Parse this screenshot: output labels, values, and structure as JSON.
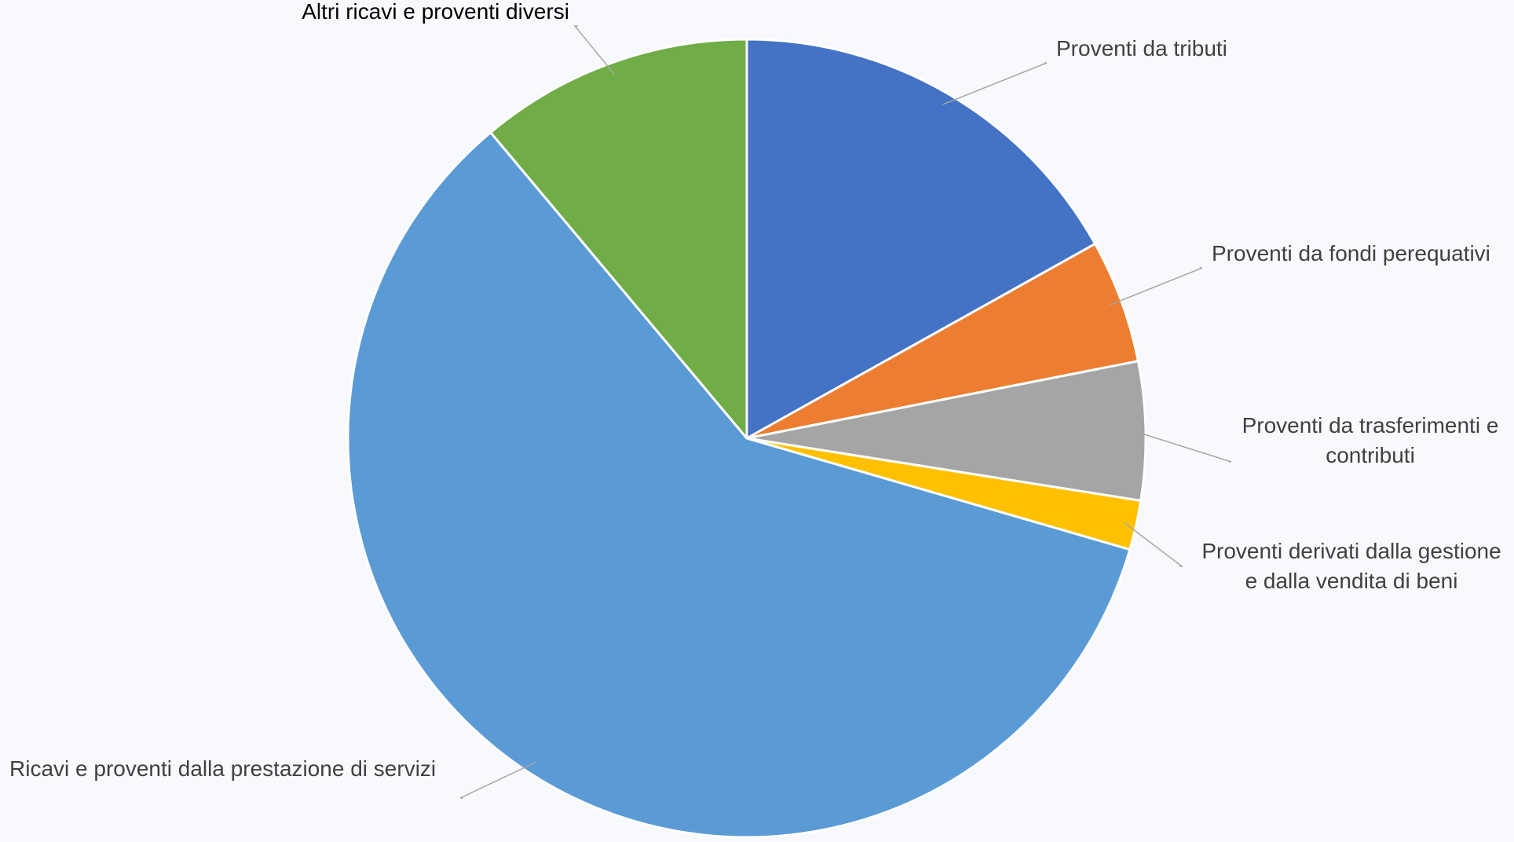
{
  "chart_data": {
    "type": "pie",
    "title": "",
    "legend": "none",
    "start_angle_deg": 0,
    "direction": "clockwise",
    "slices": [
      {
        "label": "Proventi da tributi",
        "value": 16.9,
        "color": "#4472c4",
        "label_color": "#404040",
        "label_lines": [
          "Proventi da tributi"
        ]
      },
      {
        "label": "Proventi da fondi perequativi",
        "value": 5.0,
        "color": "#ed7d31",
        "label_color": "#404040",
        "label_lines": [
          "Proventi da fondi perequativi"
        ]
      },
      {
        "label": "Proventi da trasferimenti e contributi",
        "value": 5.6,
        "color": "#a5a5a5",
        "label_color": "#404040",
        "label_lines": [
          "Proventi da trasferimenti e",
          "contributi"
        ]
      },
      {
        "label": "Proventi derivati dalla gestione e dalla vendita di beni",
        "value": 2.0,
        "color": "#ffc000",
        "label_color": "#404040",
        "label_lines": [
          "Proventi derivati dalla gestione",
          "e dalla vendita di beni"
        ]
      },
      {
        "label": "Ricavi e proventi dalla prestazione di servizi",
        "value": 59.4,
        "color": "#5b9bd5",
        "label_color": "#404040",
        "label_lines": [
          "Ricavi e proventi dalla prestazione di servizi"
        ]
      },
      {
        "label": "Altri ricavi e proventi diversi",
        "value": 11.1,
        "color": "#70ad47",
        "label_color": "#000000",
        "label_lines": [
          "Altri ricavi e proventi diversi"
        ]
      }
    ]
  }
}
